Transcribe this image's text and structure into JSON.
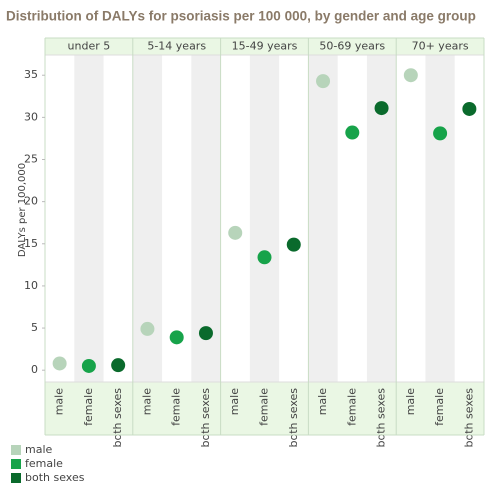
{
  "chart_data": {
    "type": "dot",
    "title": "Distribution of DALYs for psoriasis per 100 000, by gender and age group",
    "y_label": "DALYs per 100,000",
    "groups": [
      "under 5",
      "5-14 years",
      "15-49 years",
      "50-69 years",
      "70+ years"
    ],
    "series": [
      {
        "name": "male",
        "color": "#b7d4ba",
        "values": [
          0.8,
          4.9,
          16.3,
          34.3,
          35.0
        ]
      },
      {
        "name": "female",
        "color": "#17a34a",
        "values": [
          0.5,
          3.9,
          13.4,
          28.2,
          28.1
        ]
      },
      {
        "name": "both  sexes",
        "color": "#0a6a2c",
        "values": [
          0.6,
          4.4,
          14.9,
          31.1,
          31.0
        ]
      }
    ],
    "ylim": [
      -1.4,
      37.4
    ],
    "yticks": [
      0,
      5,
      10,
      15,
      20,
      25,
      30,
      35
    ],
    "grid": false
  }
}
